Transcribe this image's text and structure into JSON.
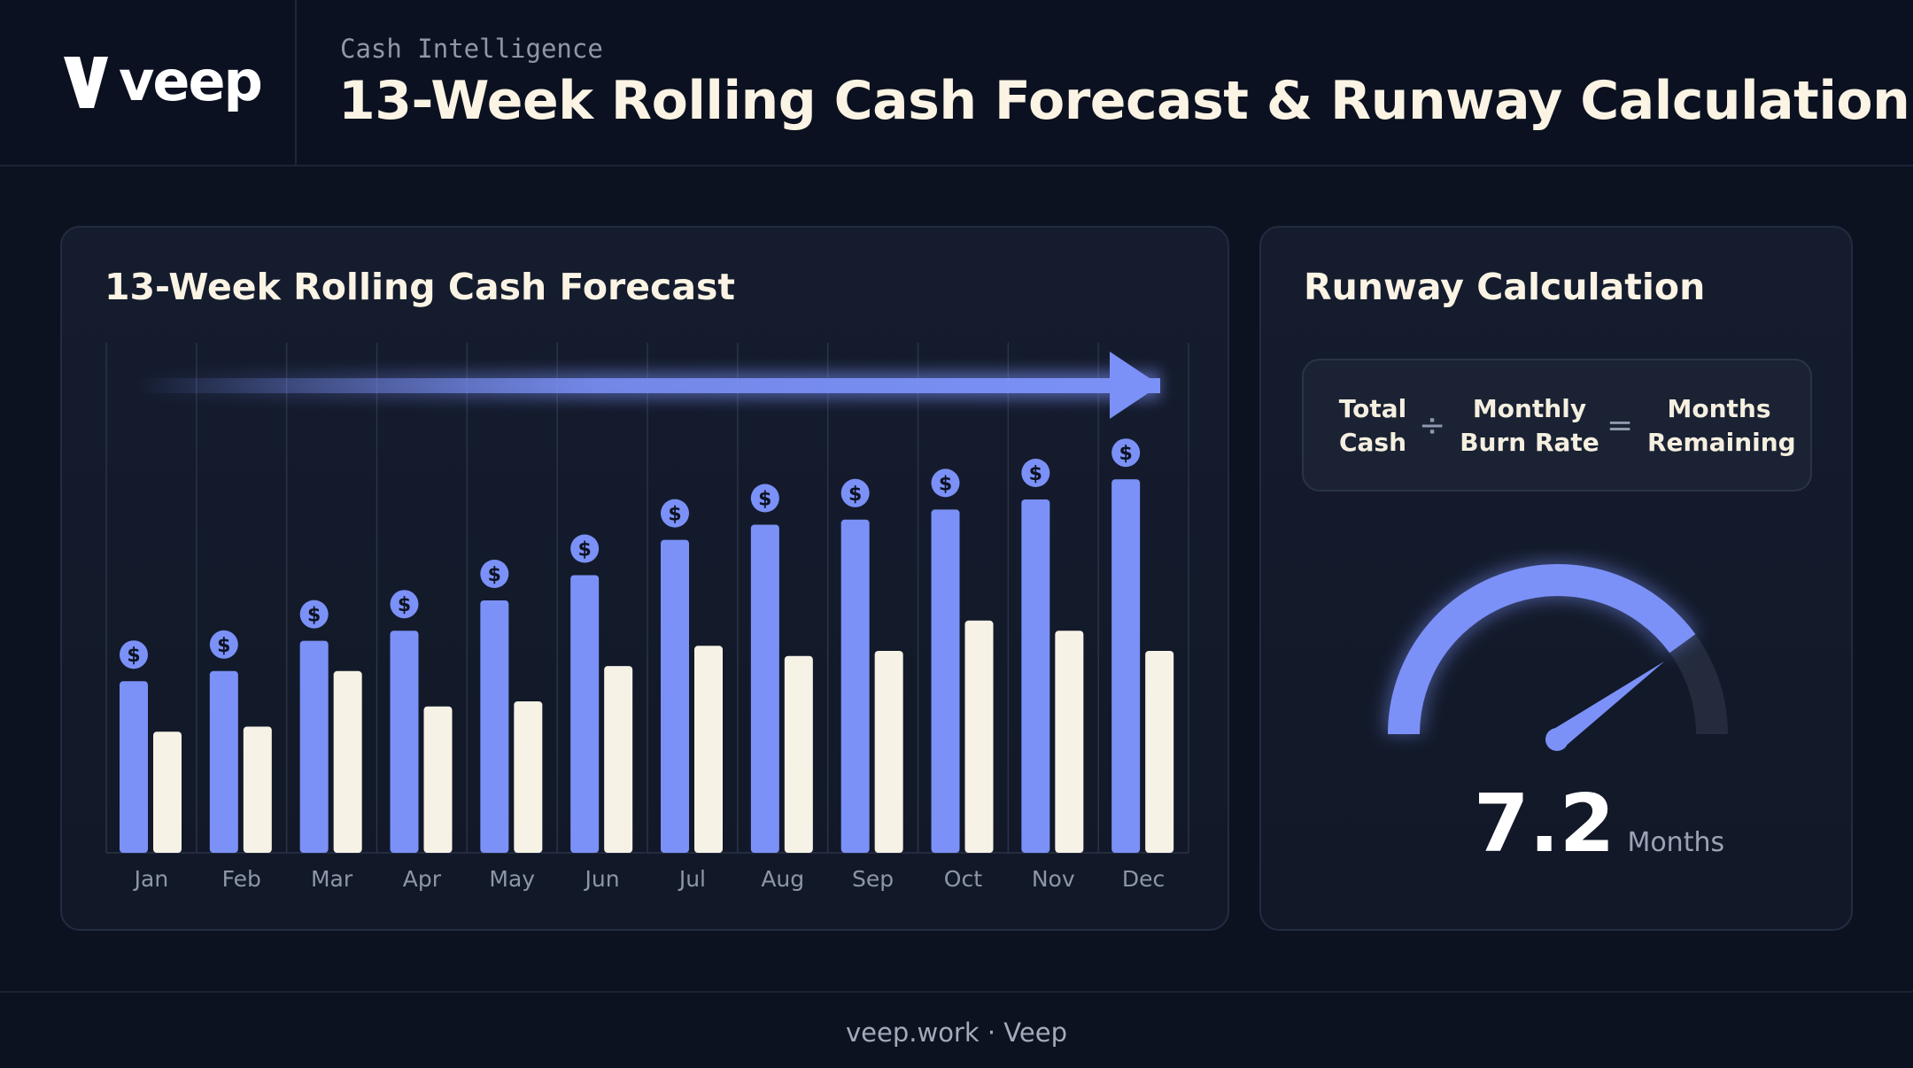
{
  "brand": {
    "name": "veep",
    "logo_icon": "veep-v-logo-icon"
  },
  "header": {
    "eyebrow": "Cash Intelligence",
    "title": "13-Week Rolling Cash Forecast & Runway Calculation"
  },
  "forecast_card": {
    "title": "13-Week Rolling Cash Forecast"
  },
  "runway_card": {
    "title": "Runway Calculation",
    "formula": {
      "term1": "Total\nCash",
      "op1": "÷",
      "term2": "Monthly\nBurn Rate",
      "op2": "=",
      "term3": "Months\nRemaining"
    },
    "value": "7.2",
    "unit": "Months",
    "gauge_fraction": 0.8
  },
  "footer": {
    "text": "veep.work · Veep"
  },
  "colors": {
    "cash_in": "#7b91f7",
    "cash_out": "#f7f2e6",
    "background": "#0c1220",
    "card": "#131a2b",
    "title_text": "#fbf4e4"
  },
  "chart_data": {
    "type": "bar",
    "categories": [
      "Jan",
      "Feb",
      "Mar",
      "Apr",
      "May",
      "Jun",
      "Jul",
      "Aug",
      "Sep",
      "Oct",
      "Nov",
      "Dec"
    ],
    "series": [
      {
        "values": [
          34,
          36,
          42,
          44,
          50,
          55,
          62,
          65,
          66,
          68,
          70,
          74
        ]
      },
      {
        "values": [
          24,
          25,
          36,
          29,
          30,
          37,
          41,
          39,
          40,
          46,
          44,
          40
        ]
      }
    ],
    "ylim": [
      0,
      100
    ],
    "grid": "vertical",
    "markers": "dollar-coin-icon above cash-in bars",
    "trend_arrow": "left-to-right"
  }
}
